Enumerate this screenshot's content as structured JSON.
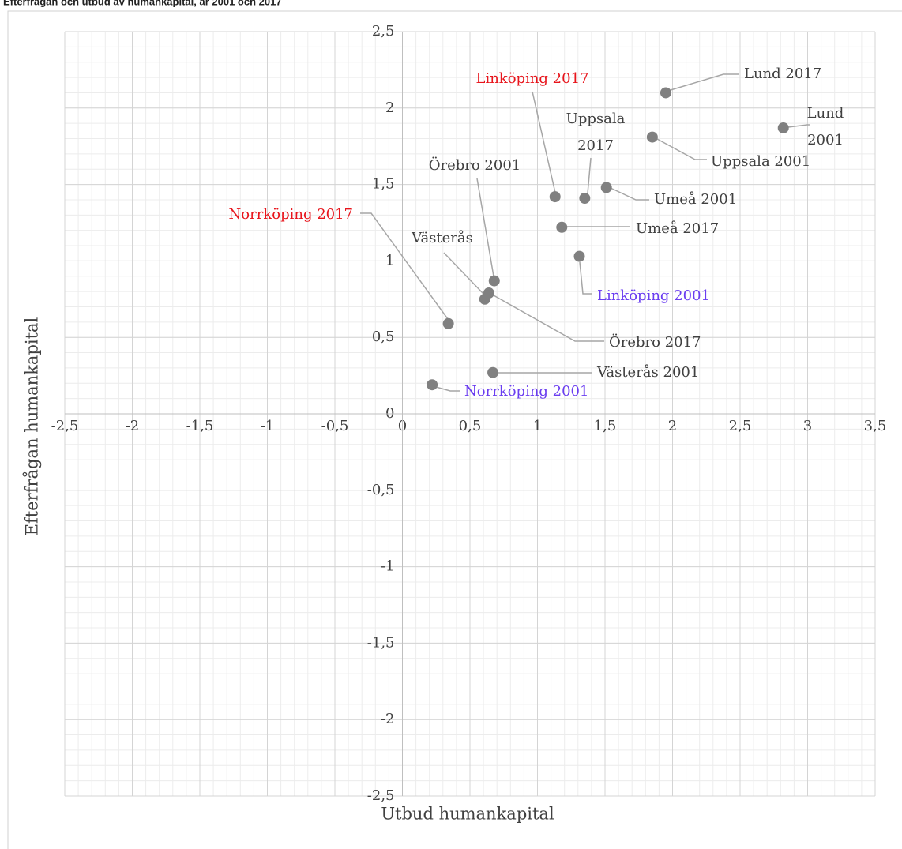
{
  "chart_data": {
    "type": "scatter",
    "title": "Efterfrågan och utbud av humankapital, år 2001 och 2017",
    "x_label": "Utbud humankapital",
    "y_label": "Efterfrågan humankapital",
    "marker_color": "#808080",
    "grid": true,
    "xlim": [
      -2.5,
      3.5
    ],
    "ylim": [
      -2.5,
      2.5
    ],
    "xticks": [
      {
        "value": -2.5,
        "label": "-2,5"
      },
      -2,
      {
        "value": -1.5,
        "label": "-1,5"
      },
      -1,
      {
        "value": -0.5,
        "label": "-0,5"
      },
      0,
      {
        "value": 0.5,
        "label": "0,5"
      },
      1,
      {
        "value": 1.5,
        "label": "1,5"
      },
      2,
      {
        "value": 2.5,
        "label": "2,5"
      },
      3,
      {
        "value": 3.5,
        "label": "3,5"
      }
    ],
    "yticks": [
      {
        "value": -2.5,
        "label": "-2,5"
      },
      -2,
      {
        "value": -1.5,
        "label": "-1,5"
      },
      -1,
      {
        "value": -0.5,
        "label": "-0,5"
      },
      0,
      {
        "value": 0.5,
        "label": "0,5"
      },
      1,
      {
        "value": 1.5,
        "label": "1,5"
      },
      2,
      {
        "value": 2.5,
        "label": "2,5"
      }
    ],
    "points": [
      {
        "label": "Lund 2017",
        "x": 1.95,
        "y": 2.1,
        "label_color": "#404040"
      },
      {
        "label": "Lund 2001",
        "x": 2.82,
        "y": 1.87,
        "label_color": "#404040"
      },
      {
        "label": "Uppsala 2001",
        "x": 1.85,
        "y": 1.81,
        "label_color": "#404040"
      },
      {
        "label": "Uppsala 2017",
        "x": 1.35,
        "y": 1.41,
        "label_color": "#404040"
      },
      {
        "label": "Linköping 2017",
        "x": 1.13,
        "y": 1.42,
        "label_color": "#e8141b"
      },
      {
        "label": "Umeå 2001",
        "x": 1.51,
        "y": 1.48,
        "label_color": "#404040"
      },
      {
        "label": "Umeå 2017",
        "x": 1.18,
        "y": 1.22,
        "label_color": "#404040"
      },
      {
        "label": "Linköping 2001",
        "x": 1.31,
        "y": 1.03,
        "label_color": "#6a3df0"
      },
      {
        "label": "Örebro 2001",
        "x": 0.68,
        "y": 0.87,
        "label_color": "#404040"
      },
      {
        "label": "Västerås",
        "x": 0.61,
        "y": 0.75,
        "label_color": "#404040"
      },
      {
        "label": "Örebro 2017",
        "x": 0.64,
        "y": 0.79,
        "label_color": "#404040"
      },
      {
        "label": "Norrköping 2017",
        "x": 0.34,
        "y": 0.59,
        "label_color": "#e8141b"
      },
      {
        "label": "Västerås 2001",
        "x": 0.67,
        "y": 0.27,
        "label_color": "#404040"
      },
      {
        "label": "Norrköping 2001",
        "x": 0.22,
        "y": 0.19,
        "label_color": "#6a3df0"
      }
    ]
  }
}
